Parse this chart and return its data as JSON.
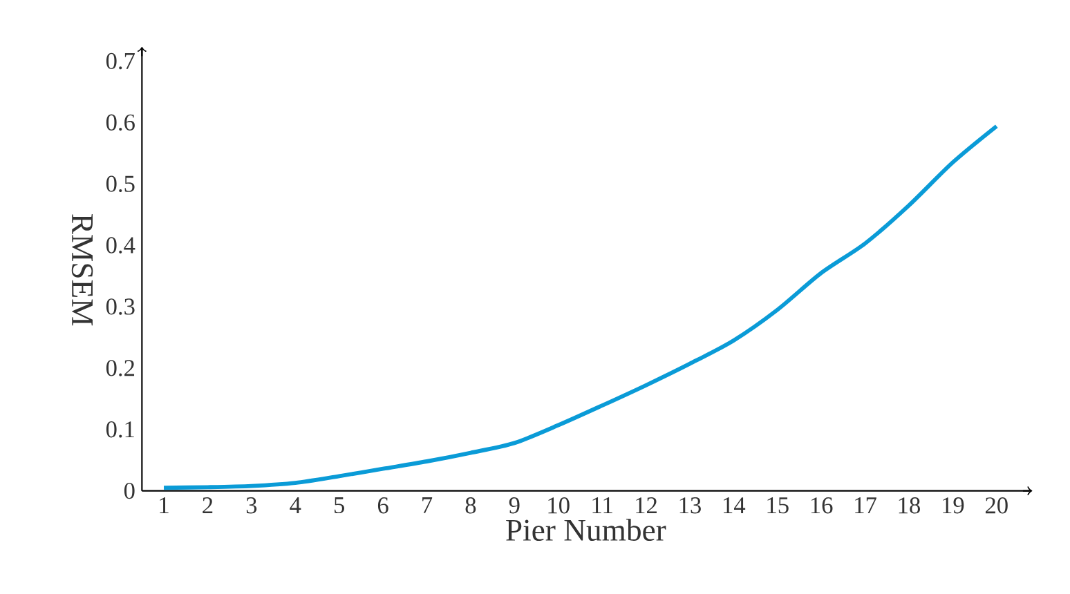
{
  "chart_data": {
    "type": "line",
    "xlabel": "Pier Number",
    "ylabel": "RMSEM",
    "x": [
      1,
      2,
      3,
      4,
      5,
      6,
      7,
      8,
      9,
      10,
      11,
      12,
      13,
      14,
      15,
      16,
      17,
      18,
      19,
      20
    ],
    "series": [
      {
        "color": "#0a9bd7",
        "values": [
          0.005,
          0.006,
          0.008,
          0.013,
          0.024,
          0.036,
          0.048,
          0.062,
          0.078,
          0.107,
          0.139,
          0.172,
          0.207,
          0.245,
          0.295,
          0.355,
          0.403,
          0.465,
          0.535,
          0.594
        ]
      }
    ],
    "xlim": [
      0.5,
      20.75
    ],
    "ylim": [
      0,
      0.72
    ],
    "xticks": [
      1,
      2,
      3,
      4,
      5,
      6,
      7,
      8,
      9,
      10,
      11,
      12,
      13,
      14,
      15,
      16,
      17,
      18,
      19,
      20
    ],
    "yticks": [
      0,
      0.1,
      0.2,
      0.3,
      0.4,
      0.5,
      0.6,
      0.7
    ],
    "marker": "none",
    "grid": false
  }
}
